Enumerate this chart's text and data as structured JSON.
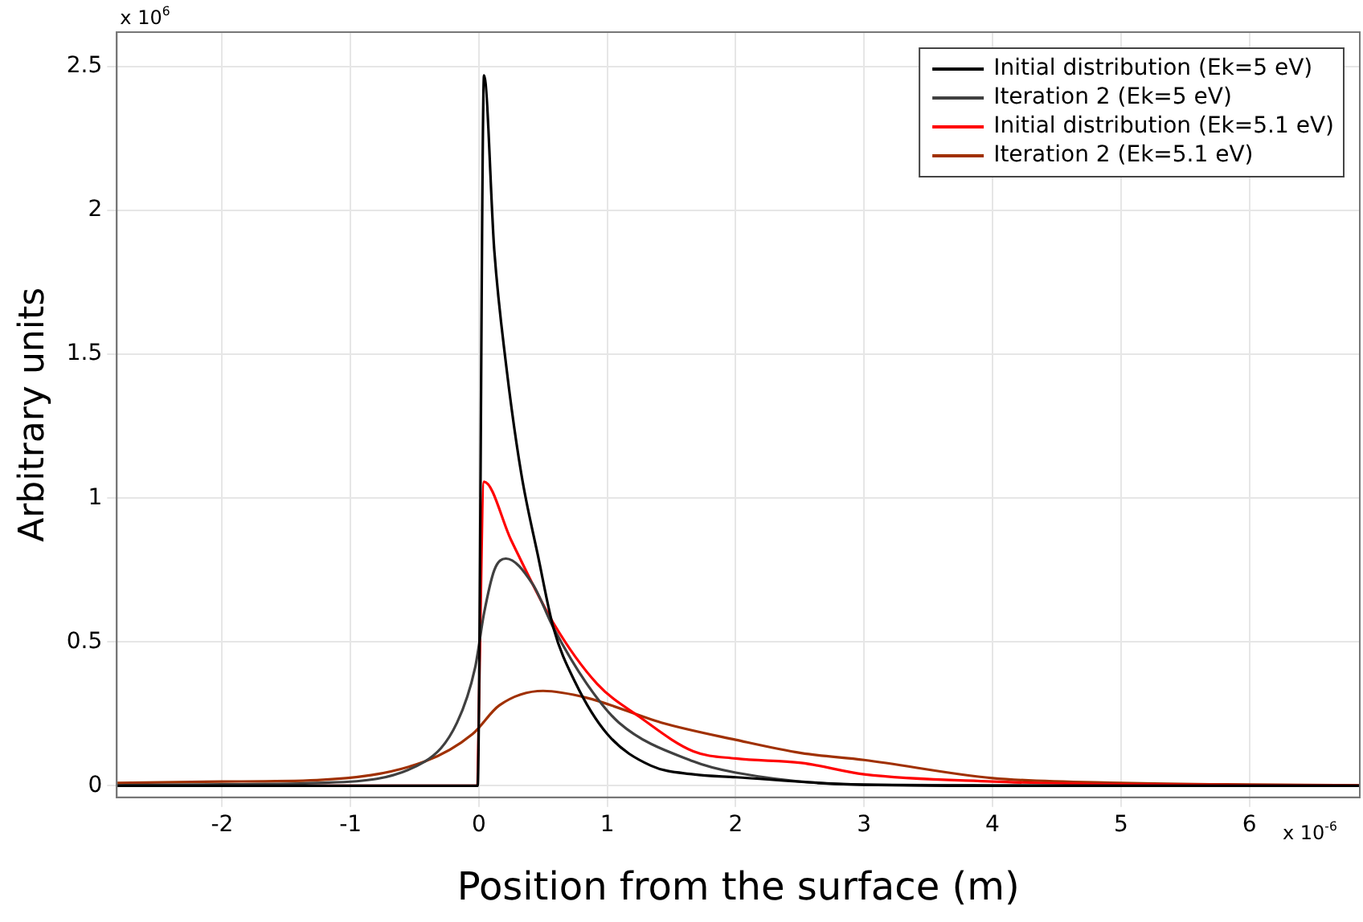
{
  "chart_data": {
    "type": "line",
    "xlabel": "Position from the surface (m)",
    "ylabel": "Arbitrary units",
    "annotations": [
      "x 10$^{6}$",
      "x 10$^{-6}$"
    ],
    "xlim": [
      -2.82,
      6.86
    ],
    "ylim": [
      -0.04,
      2.62
    ],
    "xticks": [
      -2,
      -1,
      0,
      1,
      2,
      3,
      4,
      5,
      6
    ],
    "yticks": [
      0,
      0.5,
      1,
      1.5,
      2,
      2.5
    ],
    "grid": true,
    "legend": "top right",
    "marker": "none",
    "line_style": "solid",
    "series": [
      {
        "name": "Initial distribution (Ek=5 eV)",
        "color": "#000000",
        "x": [
          -2.82,
          -0.01,
          0.04,
          0.12,
          0.21,
          0.33,
          0.46,
          0.58,
          0.75,
          1.0,
          1.34,
          1.67,
          2.0,
          2.9,
          4.0,
          5.0,
          6.86
        ],
        "values": [
          0,
          0,
          2.47,
          1.86,
          1.47,
          1.085,
          0.8,
          0.55,
          0.36,
          0.18,
          0.07,
          0.04,
          0.03,
          0.005,
          0,
          0,
          0
        ]
      },
      {
        "name": "Iteration 2 (Ek=5 eV)",
        "color": "#404040",
        "x": [
          -2.82,
          -2.0,
          -1.26,
          -0.42,
          -0.17,
          -0.03,
          0.04,
          0.12,
          0.21,
          0.42,
          0.58,
          0.84,
          1.09,
          1.67,
          2.0,
          2.9,
          4.0,
          5.0,
          6.86
        ],
        "values": [
          0.002,
          0.005,
          0.01,
          0.085,
          0.22,
          0.41,
          0.6,
          0.75,
          0.79,
          0.7,
          0.55,
          0.355,
          0.22,
          0.085,
          0.046,
          0.005,
          0.002,
          0,
          0
        ]
      },
      {
        "name": "Initial distribution (Ek=5.1 eV)",
        "color": "#ff0000",
        "x": [
          -2.82,
          -0.02,
          0.04,
          0.25,
          0.58,
          0.92,
          1.25,
          1.67,
          2.0,
          2.51,
          3.0,
          4.0,
          5.0,
          6.86
        ],
        "values": [
          0,
          0,
          1.057,
          0.855,
          0.566,
          0.355,
          0.24,
          0.12,
          0.095,
          0.08,
          0.04,
          0.015,
          0.005,
          0.001
        ]
      },
      {
        "name": "Iteration 2 (Ek=5.1 eV)",
        "color": "#a03000",
        "x": [
          -2.82,
          -2.0,
          -1.26,
          -0.42,
          -0.05,
          0.16,
          0.5,
          0.84,
          1.42,
          2.0,
          2.51,
          3.0,
          4.0,
          5.0,
          6.86
        ],
        "values": [
          0.01,
          0.015,
          0.02,
          0.085,
          0.18,
          0.28,
          0.33,
          0.306,
          0.22,
          0.16,
          0.114,
          0.09,
          0.027,
          0.01,
          0.002
        ]
      }
    ]
  }
}
